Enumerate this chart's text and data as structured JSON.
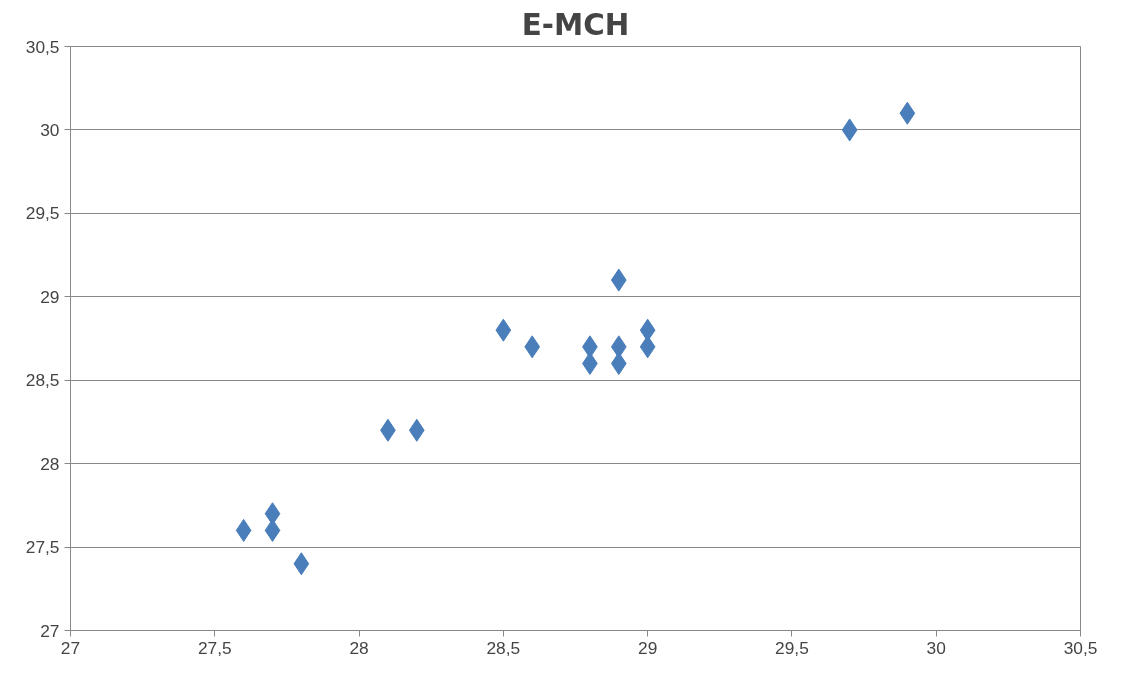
{
  "chart_data": {
    "type": "scatter",
    "title": "E-MCH",
    "x": [
      27.6,
      27.7,
      27.7,
      27.8,
      28.1,
      28.2,
      28.5,
      28.6,
      28.8,
      28.8,
      28.9,
      28.9,
      28.9,
      29.0,
      29.0,
      29.7,
      29.9
    ],
    "values": [
      27.6,
      27.7,
      27.6,
      27.4,
      28.2,
      28.2,
      28.8,
      28.7,
      28.7,
      28.6,
      29.1,
      28.7,
      28.6,
      28.8,
      28.7,
      30.0,
      30.1
    ],
    "color": "#4a7ebb",
    "marker": "diamond",
    "grid": "y",
    "xlim": [
      27,
      30.5
    ],
    "ylim": [
      27,
      30.5
    ],
    "xticks": [
      27,
      {
        "value": 27.5,
        "label": "27,5"
      },
      28,
      {
        "value": 28.5,
        "label": "28,5"
      },
      29,
      {
        "value": 29.5,
        "label": "29,5"
      },
      30,
      {
        "value": 30.5,
        "label": "30,5"
      }
    ],
    "yticks": [
      27,
      {
        "value": 27.5,
        "label": "27,5"
      },
      28,
      {
        "value": 28.5,
        "label": "28,5"
      },
      29,
      {
        "value": 29.5,
        "label": "29,5"
      },
      30,
      {
        "value": 30.5,
        "label": "30,5"
      }
    ]
  }
}
